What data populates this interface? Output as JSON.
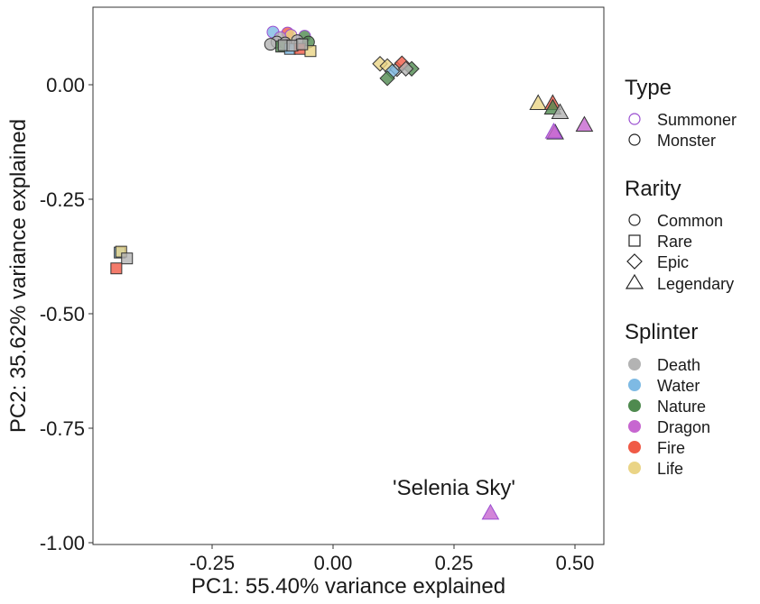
{
  "chart_data": {
    "type": "scatter",
    "xlabel": "PC1: 55.40% variance explained",
    "ylabel": "PC2: 35.62% variance explained",
    "xlim": [
      -0.495,
      0.555
    ],
    "ylim": [
      -1.015,
      0.172
    ],
    "x_ticks": [
      -0.25,
      0.0,
      0.25,
      0.5
    ],
    "x_tick_labels": [
      "-0.25",
      "0.00",
      "0.25",
      "0.50"
    ],
    "y_ticks": [
      0.0,
      -0.25,
      -0.5,
      -0.75,
      -1.0
    ],
    "y_tick_labels": [
      "0.00",
      "-0.25",
      "-0.50",
      "-0.75",
      "-1.00"
    ],
    "grid": false,
    "legend_position": "right",
    "annotations": [
      {
        "text": "'Selenia Sky'",
        "x": 0.25,
        "y": -0.885
      }
    ],
    "legends": {
      "type": {
        "title": "Type",
        "items": [
          {
            "label": "Summoner",
            "shape": "circle",
            "stroke": "#9b4fd1"
          },
          {
            "label": "Monster",
            "shape": "circle",
            "stroke": "#222222"
          }
        ]
      },
      "rarity": {
        "title": "Rarity",
        "items": [
          {
            "label": "Common",
            "shape": "circle"
          },
          {
            "label": "Rare",
            "shape": "square"
          },
          {
            "label": "Epic",
            "shape": "diamond"
          },
          {
            "label": "Legendary",
            "shape": "triangle"
          }
        ]
      },
      "splinter": {
        "title": "Splinter",
        "items": [
          {
            "label": "Death",
            "color": "#b3b3b3"
          },
          {
            "label": "Water",
            "color": "#7ebae4"
          },
          {
            "label": "Nature",
            "color": "#4f8a4f"
          },
          {
            "label": "Dragon",
            "color": "#c766d0"
          },
          {
            "label": "Fire",
            "color": "#f05a46"
          },
          {
            "label": "Life",
            "color": "#ead486"
          }
        ]
      }
    },
    "points": [
      {
        "x": -0.125,
        "y": 0.117,
        "splinter": "Water",
        "rarity": "Common",
        "type": "Summoner"
      },
      {
        "x": -0.095,
        "y": 0.115,
        "splinter": "Fire",
        "rarity": "Common",
        "type": "Summoner"
      },
      {
        "x": -0.088,
        "y": 0.11,
        "splinter": "Life",
        "rarity": "Common",
        "type": "Summoner"
      },
      {
        "x": -0.06,
        "y": 0.108,
        "splinter": "Nature",
        "rarity": "Common",
        "type": "Summoner"
      },
      {
        "x": -0.11,
        "y": 0.105,
        "splinter": "Death",
        "rarity": "Common",
        "type": "Summoner"
      },
      {
        "x": -0.117,
        "y": 0.095,
        "splinter": "Death",
        "rarity": "Common",
        "type": "Monster"
      },
      {
        "x": -0.13,
        "y": 0.09,
        "splinter": "Death",
        "rarity": "Common",
        "type": "Monster"
      },
      {
        "x": -0.1,
        "y": 0.093,
        "splinter": "Death",
        "rarity": "Common",
        "type": "Monster"
      },
      {
        "x": -0.075,
        "y": 0.098,
        "splinter": "Death",
        "rarity": "Common",
        "type": "Monster"
      },
      {
        "x": -0.07,
        "y": 0.09,
        "splinter": "Death",
        "rarity": "Common",
        "type": "Monster"
      },
      {
        "x": -0.052,
        "y": 0.095,
        "splinter": "Nature",
        "rarity": "Common",
        "type": "Monster"
      },
      {
        "x": -0.108,
        "y": 0.085,
        "splinter": "Nature",
        "rarity": "Rare",
        "type": "Monster"
      },
      {
        "x": -0.09,
        "y": 0.08,
        "splinter": "Water",
        "rarity": "Rare",
        "type": "Monster"
      },
      {
        "x": -0.07,
        "y": 0.08,
        "splinter": "Fire",
        "rarity": "Rare",
        "type": "Monster"
      },
      {
        "x": -0.048,
        "y": 0.075,
        "splinter": "Life",
        "rarity": "Rare",
        "type": "Monster"
      },
      {
        "x": -0.103,
        "y": 0.088,
        "splinter": "Death",
        "rarity": "Rare",
        "type": "Monster"
      },
      {
        "x": -0.085,
        "y": 0.087,
        "splinter": "Death",
        "rarity": "Rare",
        "type": "Monster"
      },
      {
        "x": -0.065,
        "y": 0.09,
        "splinter": "Death",
        "rarity": "Rare",
        "type": "Monster"
      },
      {
        "x": 0.095,
        "y": 0.047,
        "splinter": "Life",
        "rarity": "Epic",
        "type": "Monster"
      },
      {
        "x": 0.11,
        "y": 0.042,
        "splinter": "Life",
        "rarity": "Epic",
        "type": "Monster"
      },
      {
        "x": 0.13,
        "y": 0.035,
        "splinter": "Death",
        "rarity": "Epic",
        "type": "Monster"
      },
      {
        "x": 0.14,
        "y": 0.048,
        "splinter": "Fire",
        "rarity": "Epic",
        "type": "Monster"
      },
      {
        "x": 0.16,
        "y": 0.036,
        "splinter": "Nature",
        "rarity": "Epic",
        "type": "Monster"
      },
      {
        "x": 0.12,
        "y": 0.03,
        "splinter": "Water",
        "rarity": "Epic",
        "type": "Monster"
      },
      {
        "x": 0.11,
        "y": 0.015,
        "splinter": "Nature",
        "rarity": "Epic",
        "type": "Monster"
      },
      {
        "x": 0.148,
        "y": 0.036,
        "splinter": "Death",
        "rarity": "Epic",
        "type": "Monster"
      },
      {
        "x": 0.42,
        "y": -0.04,
        "splinter": "Life",
        "rarity": "Legendary",
        "type": "Monster"
      },
      {
        "x": 0.45,
        "y": -0.04,
        "splinter": "Fire",
        "rarity": "Legendary",
        "type": "Monster"
      },
      {
        "x": 0.45,
        "y": -0.05,
        "splinter": "Nature",
        "rarity": "Legendary",
        "type": "Monster"
      },
      {
        "x": 0.465,
        "y": -0.06,
        "splinter": "Death",
        "rarity": "Legendary",
        "type": "Monster"
      },
      {
        "x": 0.515,
        "y": -0.088,
        "splinter": "Dragon",
        "rarity": "Legendary",
        "type": "Monster"
      },
      {
        "x": 0.455,
        "y": -0.105,
        "splinter": "Dragon",
        "rarity": "Legendary",
        "type": "Monster"
      },
      {
        "x": 0.452,
        "y": -0.103,
        "splinter": "Dragon",
        "rarity": "Legendary",
        "type": "Summoner"
      },
      {
        "x": -0.44,
        "y": -0.37,
        "splinter": "Water",
        "rarity": "Rare",
        "type": "Monster"
      },
      {
        "x": -0.437,
        "y": -0.368,
        "splinter": "Life",
        "rarity": "Rare",
        "type": "Monster"
      },
      {
        "x": -0.425,
        "y": -0.383,
        "splinter": "Death",
        "rarity": "Rare",
        "type": "Monster"
      },
      {
        "x": -0.447,
        "y": -0.405,
        "splinter": "Fire",
        "rarity": "Rare",
        "type": "Monster"
      },
      {
        "x": 0.322,
        "y": -0.945,
        "splinter": "Dragon",
        "rarity": "Legendary",
        "type": "Summoner"
      }
    ]
  }
}
